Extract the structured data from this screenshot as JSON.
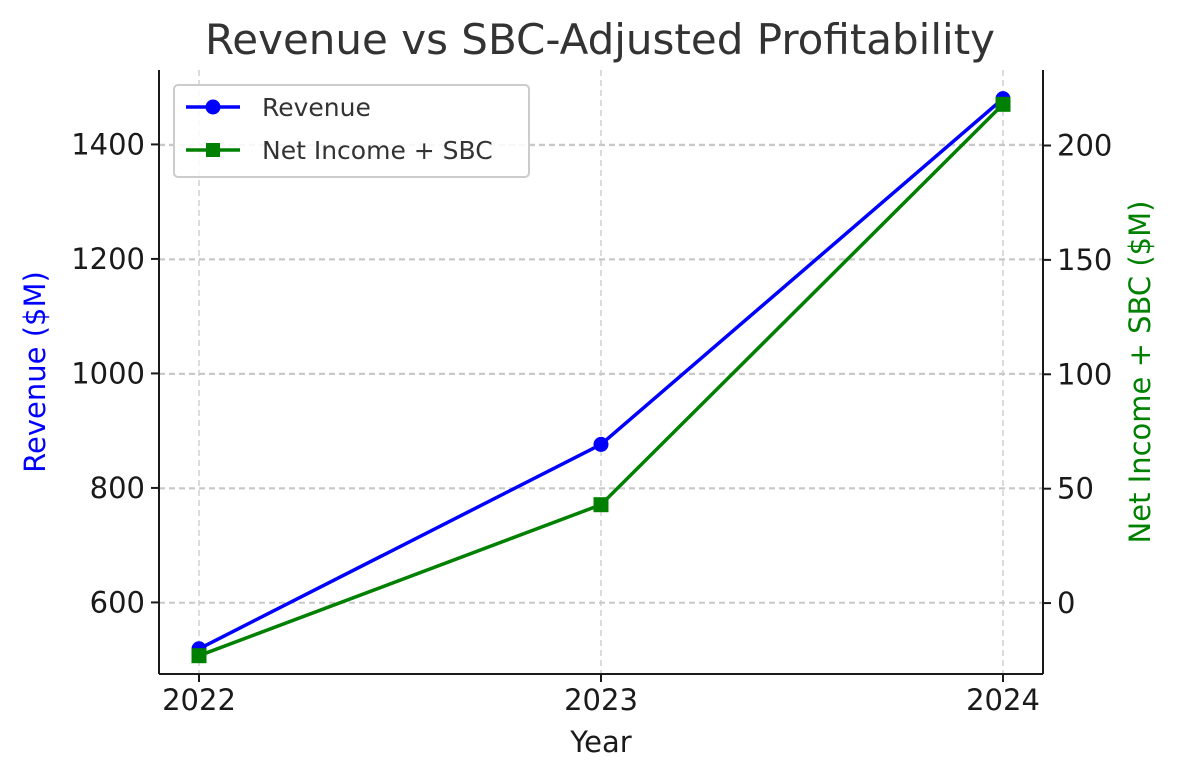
{
  "chart_data": {
    "type": "line",
    "title": "Revenue vs SBC-Adjusted Profitability",
    "xlabel": "Year",
    "ylabel": "Revenue ($M)",
    "y2label": "Net Income + SBC ($M)",
    "categories": [
      "2022",
      "2023",
      "2024"
    ],
    "ylim": [
      475,
      1530
    ],
    "y2lim": [
      -31,
      233
    ],
    "yticks": [
      600,
      800,
      1000,
      1200,
      1400
    ],
    "y2ticks": [
      0,
      50,
      100,
      150,
      200
    ],
    "grid": true,
    "legend_position": "top-left",
    "series": [
      {
        "name": "Revenue",
        "axis": "left",
        "color": "#0000ff",
        "marker": "circle",
        "values": [
          519,
          876,
          1480
        ]
      },
      {
        "name": "Net Income + SBC",
        "axis": "right",
        "color": "#008000",
        "marker": "square",
        "values": [
          -23,
          43,
          218
        ]
      }
    ]
  }
}
